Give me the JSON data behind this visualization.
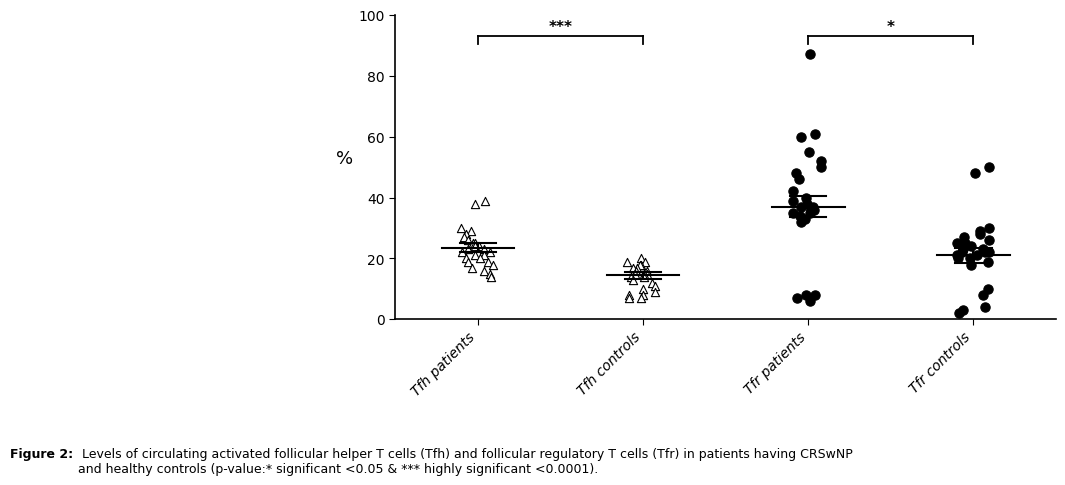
{
  "categories": [
    "Tfh patients",
    "Tfh controls",
    "Tfr patients",
    "Tfr controls"
  ],
  "tfh_patients": [
    38,
    39,
    30,
    29,
    28,
    27,
    26,
    25,
    25,
    24,
    24,
    23,
    23,
    22,
    22,
    21,
    21,
    20,
    20,
    19,
    19,
    18,
    17,
    16,
    15,
    14
  ],
  "tfh_controls": [
    20,
    19,
    19,
    18,
    18,
    17,
    17,
    16,
    16,
    15,
    15,
    15,
    14,
    14,
    13,
    12,
    11,
    10,
    9,
    8,
    8,
    7,
    7
  ],
  "tfr_patients": [
    87,
    61,
    60,
    55,
    52,
    50,
    48,
    46,
    42,
    40,
    39,
    38,
    37,
    37,
    36,
    36,
    35,
    35,
    34,
    33,
    32,
    8,
    8,
    7,
    6
  ],
  "tfr_controls": [
    50,
    48,
    30,
    29,
    28,
    27,
    26,
    25,
    25,
    24,
    23,
    23,
    22,
    22,
    22,
    21,
    21,
    20,
    20,
    19,
    18,
    10,
    8,
    4,
    3,
    2
  ],
  "tfh_patients_mean": 23.5,
  "tfh_patients_sem": 1.5,
  "tfh_controls_mean": 14.5,
  "tfh_controls_sem": 1.2,
  "tfr_patients_mean": 37.0,
  "tfr_patients_sem": 3.5,
  "tfr_controls_mean": 21.0,
  "tfr_controls_sem": 2.5,
  "ylabel": "%",
  "ylim": [
    0,
    100
  ],
  "yticks": [
    0,
    20,
    40,
    60,
    80,
    100
  ],
  "sig_line1_text": "***",
  "sig_line2_text": "*",
  "caption_bold": "Figure 2:",
  "caption_normal": " Levels of circulating activated follicular helper T cells (Tfh) and follicular regulatory T cells (Tfr) in patients having CRSwNP\nand healthy controls (p-value:* significant <0.05 & *** highly significant <0.0001).",
  "marker_color": "black",
  "triangle_facecolor": "white",
  "triangle_edgecolor": "black"
}
